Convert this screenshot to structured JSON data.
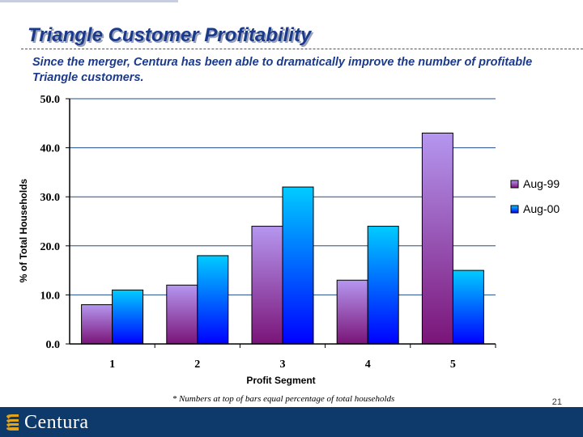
{
  "slide": {
    "title": "Triangle Customer Profitability",
    "subtitle": "Since the merger, Centura has been able to dramatically improve the number of profitable Triangle customers.",
    "footnote": "* Numbers at top of bars equal percentage of total households",
    "page_number": "21",
    "logo_text": "Centura"
  },
  "colors": {
    "title": "#1b3a8c",
    "footer": "#0e3a6b",
    "aug99_top": "#b597f0",
    "aug99_bottom": "#7a1478",
    "aug00_top": "#00ccff",
    "aug00_bottom": "#0000ff",
    "gridline": "#1f4e8c"
  },
  "chart_data": {
    "type": "bar",
    "categories": [
      "1",
      "2",
      "3",
      "4",
      "5"
    ],
    "series": [
      {
        "name": "Aug-99",
        "values": [
          8,
          12,
          24,
          13,
          43
        ]
      },
      {
        "name": "Aug-00",
        "values": [
          11,
          18,
          32,
          24,
          15
        ]
      }
    ],
    "xlabel": "Profit Segment",
    "ylabel": "% of Total Households",
    "ylim": [
      0,
      50
    ],
    "yticks": [
      "0.0",
      "10.0",
      "20.0",
      "30.0",
      "40.0",
      "50.0"
    ],
    "grid": true,
    "legend": "right"
  }
}
